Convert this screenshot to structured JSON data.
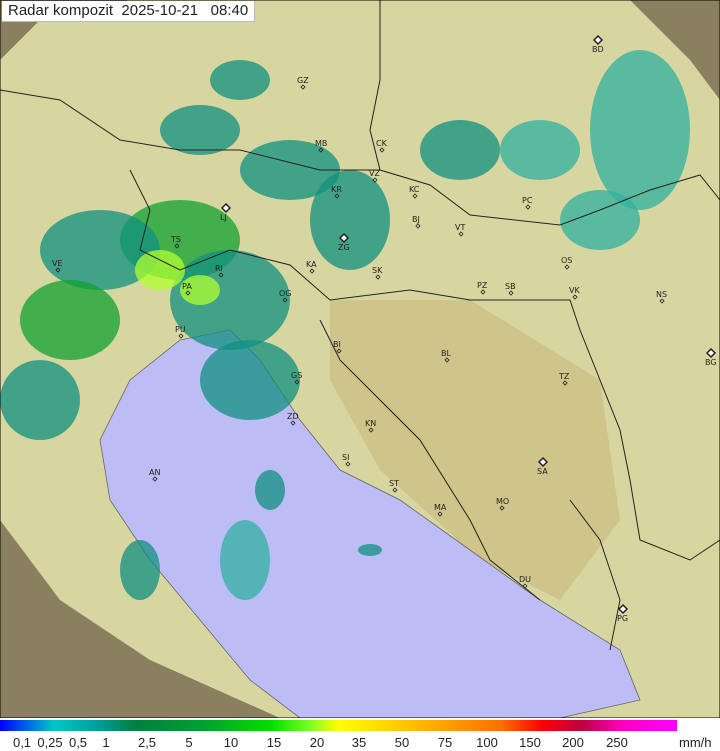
{
  "title": {
    "product": "Radar kompozit",
    "date": "2025-10-21",
    "time": "08:40"
  },
  "legend": {
    "unit": "mm/h",
    "ticks": [
      "0,1",
      "0,25",
      "0,5",
      "1",
      "2,5",
      "5",
      "10",
      "15",
      "20",
      "35",
      "50",
      "75",
      "100",
      "150",
      "200",
      "250"
    ]
  },
  "colors": {
    "sea": "#bdbdf5",
    "land_inside": "#d8d6a0",
    "outside": "#8a8060",
    "rain_light": "#30b0a0",
    "rain_moderate": "#10a030",
    "rain_heavy": "#a0ff30"
  },
  "cities": [
    "GZ",
    "BD",
    "MB",
    "CK",
    "VZ",
    "KR",
    "KC",
    "LJ",
    "BJ",
    "PC",
    "TS",
    "ZG",
    "VT",
    "KA",
    "SK",
    "OS",
    "VE",
    "RI",
    "PA",
    "OG",
    "PZ",
    "SB",
    "VK",
    "NS",
    "PU",
    "BI",
    "BL",
    "BG",
    "GS",
    "TZ",
    "ZD",
    "KN",
    "SI",
    "SA",
    "AN",
    "ST",
    "MA",
    "MO",
    "DU",
    "PG"
  ],
  "radar_sites": [
    "BD",
    "LJ",
    "ZG",
    "BG",
    "SA",
    "PG"
  ]
}
